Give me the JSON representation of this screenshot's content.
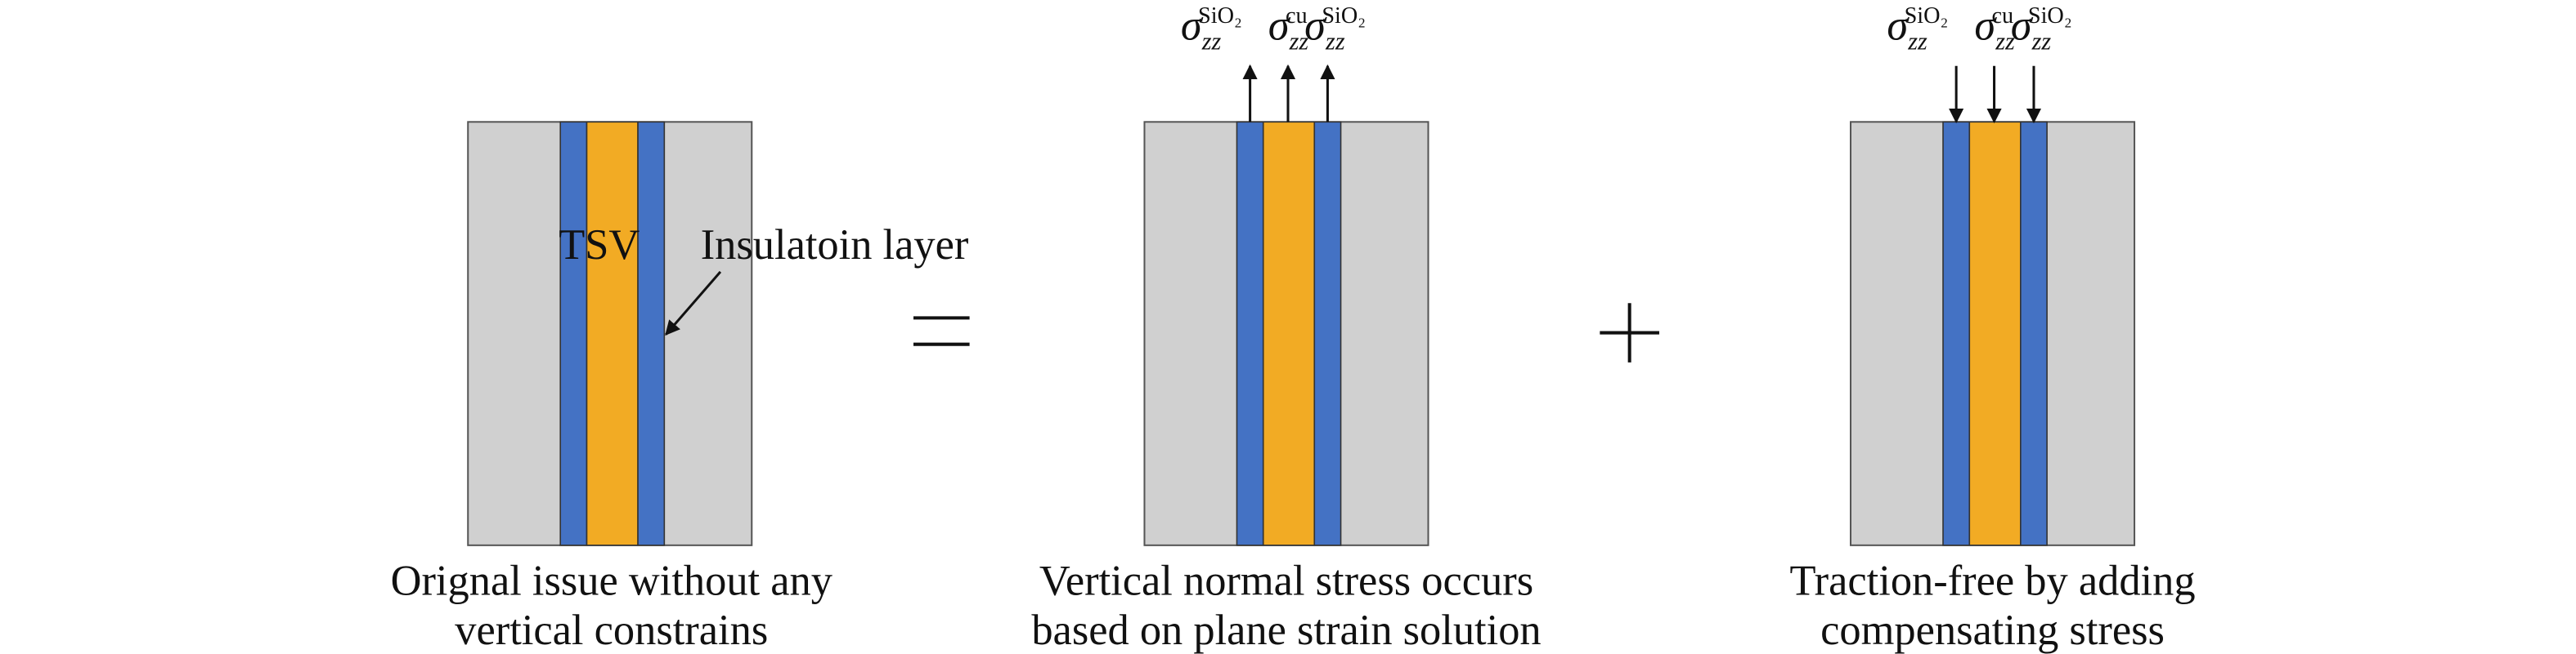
{
  "panels": [
    {
      "labels": {
        "tsv": "TSV",
        "insulation": "Insulatoin layer"
      },
      "caption": [
        "Orignal issue without any",
        "vertical constrains"
      ]
    },
    {
      "stresses": [
        {
          "symbol": "σ",
          "subscript": "zz",
          "superscript": "SiO₂"
        },
        {
          "symbol": "σ",
          "subscript": "zz",
          "superscript": "cu"
        },
        {
          "symbol": "σ",
          "subscript": "zz",
          "superscript": "SiO₂"
        }
      ],
      "caption": [
        "Vertical normal stress occurs",
        "based on plane strain solution"
      ]
    },
    {
      "stresses": [
        {
          "symbol": "σ",
          "subscript": "zz",
          "superscript": "SiO₂"
        },
        {
          "symbol": "σ",
          "subscript": "zz",
          "superscript": "cu"
        },
        {
          "symbol": "σ",
          "subscript": "zz",
          "superscript": "SiO₂"
        }
      ],
      "caption": [
        "Traction-free by adding",
        "compensating stress"
      ]
    }
  ]
}
